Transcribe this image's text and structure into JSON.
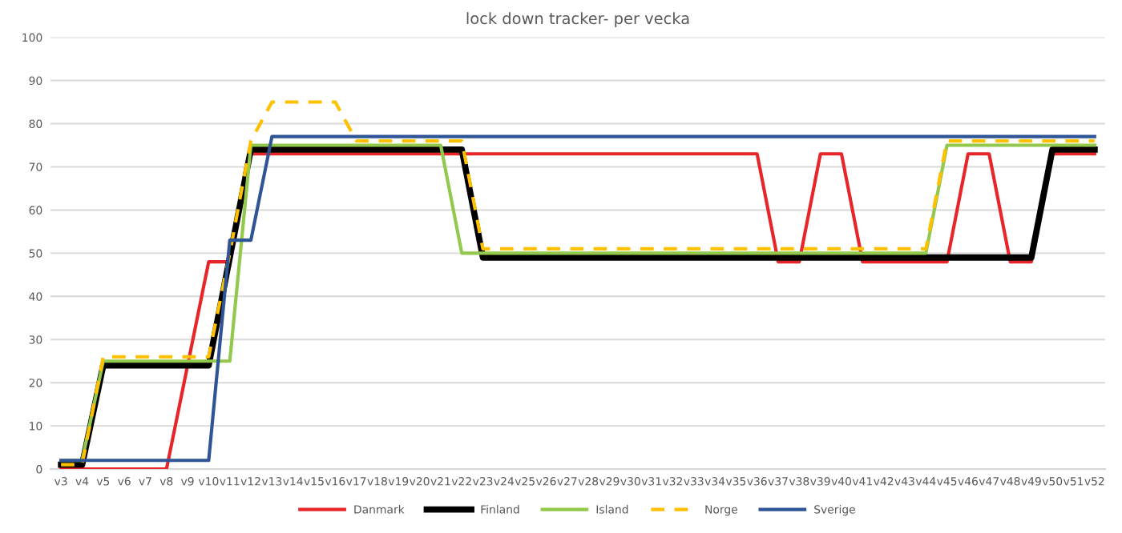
{
  "chart_data": {
    "type": "line",
    "title": "lock down tracker- per vecka",
    "categories": [
      "v3",
      "v4",
      "v5",
      "v6",
      "v7",
      "v8",
      "v9",
      "v10",
      "v11",
      "v12",
      "v13",
      "v14",
      "v15",
      "v16",
      "v17",
      "v18",
      "v19",
      "v20",
      "v21",
      "v22",
      "v23",
      "v24",
      "v25",
      "v26",
      "v27",
      "v28",
      "v29",
      "v30",
      "v31",
      "v32",
      "v33",
      "v34",
      "v35",
      "v36",
      "v37",
      "v38",
      "v39",
      "v40",
      "v41",
      "v42",
      "v43",
      "v44",
      "v45",
      "v46",
      "v47",
      "v48",
      "v49",
      "v50",
      "v51",
      "v52"
    ],
    "series": [
      {
        "name": "Danmark",
        "color": "#e8262a",
        "line_style": "solid",
        "values": [
          0,
          0,
          0,
          0,
          0,
          0,
          24,
          48,
          48,
          73,
          73,
          73,
          73,
          73,
          73,
          73,
          73,
          73,
          73,
          73,
          73,
          73,
          73,
          73,
          73,
          73,
          73,
          73,
          73,
          73,
          73,
          73,
          73,
          73,
          48,
          48,
          73,
          73,
          48,
          48,
          48,
          48,
          48,
          73,
          73,
          48,
          48,
          73,
          73,
          73
        ]
      },
      {
        "name": "Finland",
        "color": "#000000",
        "line_style": "solid",
        "values": [
          1,
          1,
          24,
          24,
          24,
          24,
          24,
          24,
          49,
          74,
          74,
          74,
          74,
          74,
          74,
          74,
          74,
          74,
          74,
          74,
          49,
          49,
          49,
          49,
          49,
          49,
          49,
          49,
          49,
          49,
          49,
          49,
          49,
          49,
          49,
          49,
          49,
          49,
          49,
          49,
          49,
          49,
          49,
          49,
          49,
          49,
          49,
          74,
          74,
          74
        ]
      },
      {
        "name": "Island",
        "color": "#92c84c",
        "line_style": "solid",
        "values": [
          2,
          2,
          25,
          25,
          25,
          25,
          25,
          25,
          25,
          75,
          75,
          75,
          75,
          75,
          75,
          75,
          75,
          75,
          75,
          50,
          50,
          50,
          50,
          50,
          50,
          50,
          50,
          50,
          50,
          50,
          50,
          50,
          50,
          50,
          50,
          50,
          50,
          50,
          50,
          50,
          50,
          50,
          75,
          75,
          75,
          75,
          75,
          75,
          75,
          75
        ]
      },
      {
        "name": "Norge",
        "color": "#ffc000",
        "line_style": "dashed",
        "values": [
          1,
          1,
          26,
          26,
          26,
          26,
          26,
          26,
          50,
          76,
          85,
          85,
          85,
          85,
          76,
          76,
          76,
          76,
          76,
          76,
          51,
          51,
          51,
          51,
          51,
          51,
          51,
          51,
          51,
          51,
          51,
          51,
          51,
          51,
          51,
          51,
          51,
          51,
          51,
          51,
          51,
          51,
          76,
          76,
          76,
          76,
          76,
          76,
          76,
          76
        ]
      },
      {
        "name": "Sverige",
        "color": "#2f5597",
        "line_style": "solid",
        "values": [
          2,
          2,
          2,
          2,
          2,
          2,
          2,
          2,
          53,
          53,
          77,
          77,
          77,
          77,
          77,
          77,
          77,
          77,
          77,
          77,
          77,
          77,
          77,
          77,
          77,
          77,
          77,
          77,
          77,
          77,
          77,
          77,
          77,
          77,
          77,
          77,
          77,
          77,
          77,
          77,
          77,
          77,
          77,
          77,
          77,
          77,
          77,
          77,
          77,
          77
        ]
      }
    ],
    "ylim": [
      0,
      100
    ],
    "yticks": [
      0,
      10,
      20,
      30,
      40,
      50,
      60,
      70,
      80,
      90,
      100
    ],
    "grid": "y",
    "legend": "bottom",
    "marker": "none"
  }
}
